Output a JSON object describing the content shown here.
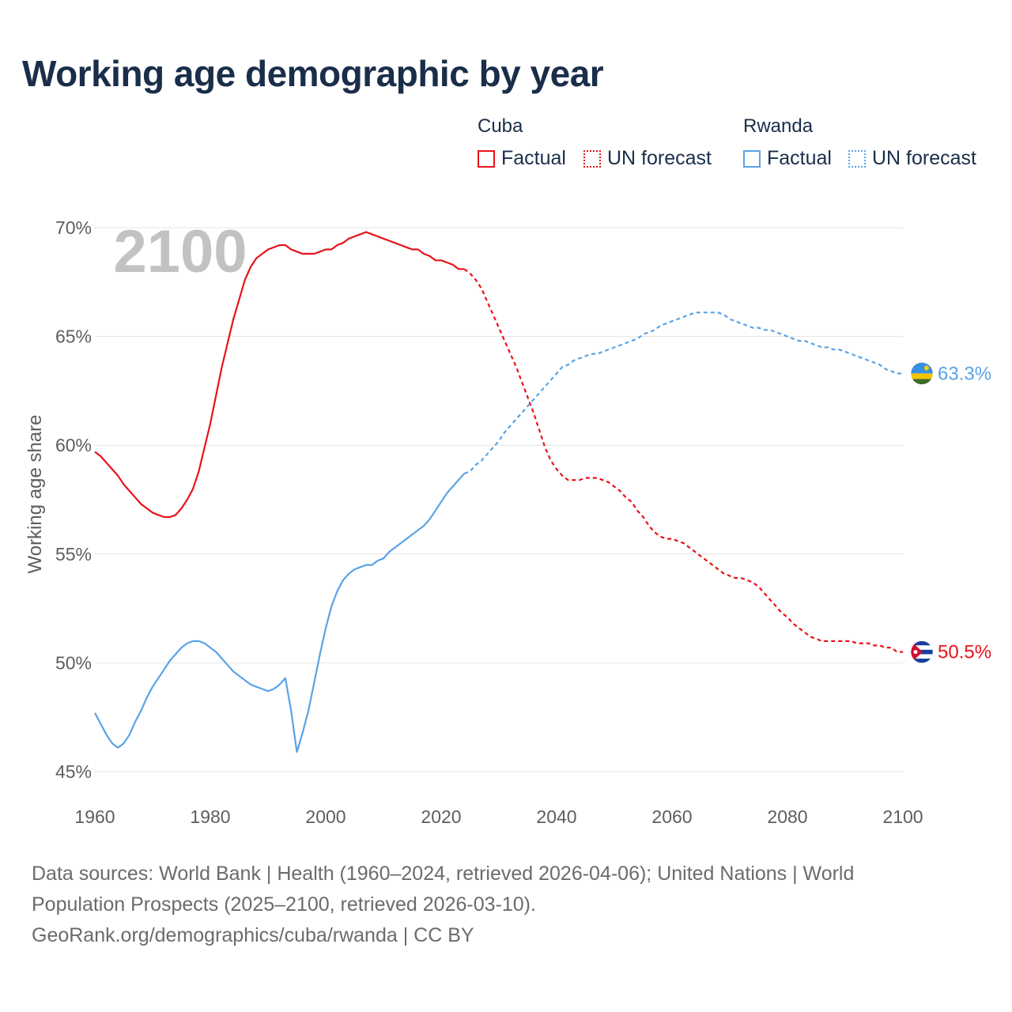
{
  "title": "Working age demographic by year",
  "legend": {
    "cuba": {
      "label": "Cuba",
      "factual": "Factual",
      "forecast": "UN forecast",
      "color": "#e8121b"
    },
    "rwanda": {
      "label": "Rwanda",
      "factual": "Factual",
      "forecast": "UN forecast",
      "color": "#5aa3e6"
    }
  },
  "footer": {
    "line1": "Data sources: World Bank | Health (1960–2024, retrieved 2026-04-06); United Nations | World",
    "line2": "Population Prospects (2025–2100, retrieved 2026-03-10).",
    "line3": "GeoRank.org/demographics/cuba/rwanda | CC BY"
  },
  "chart_data": {
    "type": "line",
    "year_watermark": "2100",
    "ylabel": "Working age share",
    "xlim": [
      1960,
      2100
    ],
    "ylim": [
      45,
      70
    ],
    "x_ticks": [
      "1960",
      "1980",
      "2000",
      "2020",
      "2040",
      "2060",
      "2080",
      "2100"
    ],
    "y_ticks": [
      "45%",
      "50%",
      "55%",
      "60%",
      "65%",
      "70%"
    ],
    "grid": true,
    "factual_end_year": 2024,
    "series": [
      {
        "name": "Cuba",
        "color": "#e8121b",
        "end_label": "50.5%",
        "flag": "cuba-flag",
        "points": [
          [
            1960,
            59.7
          ],
          [
            1961,
            59.5
          ],
          [
            1962,
            59.2
          ],
          [
            1963,
            58.9
          ],
          [
            1964,
            58.6
          ],
          [
            1965,
            58.2
          ],
          [
            1966,
            57.9
          ],
          [
            1967,
            57.6
          ],
          [
            1968,
            57.3
          ],
          [
            1969,
            57.1
          ],
          [
            1970,
            56.9
          ],
          [
            1971,
            56.8
          ],
          [
            1972,
            56.7
          ],
          [
            1973,
            56.7
          ],
          [
            1974,
            56.8
          ],
          [
            1975,
            57.1
          ],
          [
            1976,
            57.5
          ],
          [
            1977,
            58.0
          ],
          [
            1978,
            58.8
          ],
          [
            1979,
            59.9
          ],
          [
            1980,
            61.0
          ],
          [
            1981,
            62.3
          ],
          [
            1982,
            63.6
          ],
          [
            1983,
            64.7
          ],
          [
            1984,
            65.8
          ],
          [
            1985,
            66.7
          ],
          [
            1986,
            67.6
          ],
          [
            1987,
            68.2
          ],
          [
            1988,
            68.6
          ],
          [
            1989,
            68.8
          ],
          [
            1990,
            69.0
          ],
          [
            1991,
            69.1
          ],
          [
            1992,
            69.2
          ],
          [
            1993,
            69.2
          ],
          [
            1994,
            69.0
          ],
          [
            1995,
            68.9
          ],
          [
            1996,
            68.8
          ],
          [
            1997,
            68.8
          ],
          [
            1998,
            68.8
          ],
          [
            1999,
            68.9
          ],
          [
            2000,
            69.0
          ],
          [
            2001,
            69.0
          ],
          [
            2002,
            69.2
          ],
          [
            2003,
            69.3
          ],
          [
            2004,
            69.5
          ],
          [
            2005,
            69.6
          ],
          [
            2006,
            69.7
          ],
          [
            2007,
            69.8
          ],
          [
            2008,
            69.7
          ],
          [
            2009,
            69.6
          ],
          [
            2010,
            69.5
          ],
          [
            2011,
            69.4
          ],
          [
            2012,
            69.3
          ],
          [
            2013,
            69.2
          ],
          [
            2014,
            69.1
          ],
          [
            2015,
            69.0
          ],
          [
            2016,
            69.0
          ],
          [
            2017,
            68.8
          ],
          [
            2018,
            68.7
          ],
          [
            2019,
            68.5
          ],
          [
            2020,
            68.5
          ],
          [
            2021,
            68.4
          ],
          [
            2022,
            68.3
          ],
          [
            2023,
            68.1
          ],
          [
            2024,
            68.1
          ],
          [
            2025,
            67.9
          ],
          [
            2026,
            67.6
          ],
          [
            2027,
            67.2
          ],
          [
            2028,
            66.6
          ],
          [
            2029,
            66.0
          ],
          [
            2030,
            65.4
          ],
          [
            2031,
            64.8
          ],
          [
            2032,
            64.2
          ],
          [
            2033,
            63.6
          ],
          [
            2034,
            62.9
          ],
          [
            2035,
            62.2
          ],
          [
            2036,
            61.5
          ],
          [
            2037,
            60.7
          ],
          [
            2038,
            59.9
          ],
          [
            2039,
            59.3
          ],
          [
            2040,
            58.9
          ],
          [
            2041,
            58.6
          ],
          [
            2042,
            58.4
          ],
          [
            2043,
            58.4
          ],
          [
            2044,
            58.4
          ],
          [
            2045,
            58.5
          ],
          [
            2046,
            58.5
          ],
          [
            2047,
            58.5
          ],
          [
            2048,
            58.4
          ],
          [
            2049,
            58.3
          ],
          [
            2050,
            58.1
          ],
          [
            2051,
            57.9
          ],
          [
            2052,
            57.6
          ],
          [
            2053,
            57.4
          ],
          [
            2054,
            57.0
          ],
          [
            2055,
            56.7
          ],
          [
            2056,
            56.3
          ],
          [
            2057,
            56.0
          ],
          [
            2058,
            55.8
          ],
          [
            2059,
            55.7
          ],
          [
            2060,
            55.7
          ],
          [
            2061,
            55.6
          ],
          [
            2062,
            55.5
          ],
          [
            2063,
            55.3
          ],
          [
            2064,
            55.1
          ],
          [
            2065,
            54.9
          ],
          [
            2066,
            54.7
          ],
          [
            2067,
            54.5
          ],
          [
            2068,
            54.3
          ],
          [
            2069,
            54.1
          ],
          [
            2070,
            54.0
          ],
          [
            2071,
            53.9
          ],
          [
            2072,
            53.9
          ],
          [
            2073,
            53.8
          ],
          [
            2074,
            53.7
          ],
          [
            2075,
            53.5
          ],
          [
            2076,
            53.2
          ],
          [
            2077,
            52.9
          ],
          [
            2078,
            52.6
          ],
          [
            2079,
            52.3
          ],
          [
            2080,
            52.1
          ],
          [
            2081,
            51.8
          ],
          [
            2082,
            51.6
          ],
          [
            2083,
            51.4
          ],
          [
            2084,
            51.2
          ],
          [
            2085,
            51.1
          ],
          [
            2086,
            51.0
          ],
          [
            2087,
            51.0
          ],
          [
            2088,
            51.0
          ],
          [
            2089,
            51.0
          ],
          [
            2090,
            51.0
          ],
          [
            2091,
            51.0
          ],
          [
            2092,
            50.9
          ],
          [
            2093,
            50.9
          ],
          [
            2094,
            50.9
          ],
          [
            2095,
            50.8
          ],
          [
            2096,
            50.8
          ],
          [
            2097,
            50.7
          ],
          [
            2098,
            50.7
          ],
          [
            2099,
            50.5
          ],
          [
            2100,
            50.5
          ]
        ]
      },
      {
        "name": "Rwanda",
        "color": "#5aa3e6",
        "end_label": "63.3%",
        "flag": "rwanda-flag",
        "points": [
          [
            1960,
            47.7
          ],
          [
            1961,
            47.2
          ],
          [
            1962,
            46.7
          ],
          [
            1963,
            46.3
          ],
          [
            1964,
            46.1
          ],
          [
            1965,
            46.3
          ],
          [
            1966,
            46.7
          ],
          [
            1967,
            47.3
          ],
          [
            1968,
            47.8
          ],
          [
            1969,
            48.4
          ],
          [
            1970,
            48.9
          ],
          [
            1971,
            49.3
          ],
          [
            1972,
            49.7
          ],
          [
            1973,
            50.1
          ],
          [
            1974,
            50.4
          ],
          [
            1975,
            50.7
          ],
          [
            1976,
            50.9
          ],
          [
            1977,
            51.0
          ],
          [
            1978,
            51.0
          ],
          [
            1979,
            50.9
          ],
          [
            1980,
            50.7
          ],
          [
            1981,
            50.5
          ],
          [
            1982,
            50.2
          ],
          [
            1983,
            49.9
          ],
          [
            1984,
            49.6
          ],
          [
            1985,
            49.4
          ],
          [
            1986,
            49.2
          ],
          [
            1987,
            49.0
          ],
          [
            1988,
            48.9
          ],
          [
            1989,
            48.8
          ],
          [
            1990,
            48.7
          ],
          [
            1991,
            48.8
          ],
          [
            1992,
            49.0
          ],
          [
            1993,
            49.3
          ],
          [
            1994,
            47.8
          ],
          [
            1995,
            45.9
          ],
          [
            1996,
            46.8
          ],
          [
            1997,
            47.8
          ],
          [
            1998,
            49.1
          ],
          [
            1999,
            50.4
          ],
          [
            2000,
            51.6
          ],
          [
            2001,
            52.6
          ],
          [
            2002,
            53.3
          ],
          [
            2003,
            53.8
          ],
          [
            2004,
            54.1
          ],
          [
            2005,
            54.3
          ],
          [
            2006,
            54.4
          ],
          [
            2007,
            54.5
          ],
          [
            2008,
            54.5
          ],
          [
            2009,
            54.7
          ],
          [
            2010,
            54.8
          ],
          [
            2011,
            55.1
          ],
          [
            2012,
            55.3
          ],
          [
            2013,
            55.5
          ],
          [
            2014,
            55.7
          ],
          [
            2015,
            55.9
          ],
          [
            2016,
            56.1
          ],
          [
            2017,
            56.3
          ],
          [
            2018,
            56.6
          ],
          [
            2019,
            57.0
          ],
          [
            2020,
            57.4
          ],
          [
            2021,
            57.8
          ],
          [
            2022,
            58.1
          ],
          [
            2023,
            58.4
          ],
          [
            2024,
            58.7
          ],
          [
            2025,
            58.8
          ],
          [
            2026,
            59.1
          ],
          [
            2027,
            59.3
          ],
          [
            2028,
            59.6
          ],
          [
            2029,
            59.9
          ],
          [
            2030,
            60.2
          ],
          [
            2031,
            60.6
          ],
          [
            2032,
            60.9
          ],
          [
            2033,
            61.2
          ],
          [
            2034,
            61.5
          ],
          [
            2035,
            61.8
          ],
          [
            2036,
            62.1
          ],
          [
            2037,
            62.4
          ],
          [
            2038,
            62.7
          ],
          [
            2039,
            63.0
          ],
          [
            2040,
            63.3
          ],
          [
            2041,
            63.6
          ],
          [
            2042,
            63.7
          ],
          [
            2043,
            63.9
          ],
          [
            2044,
            64.0
          ],
          [
            2045,
            64.1
          ],
          [
            2046,
            64.2
          ],
          [
            2047,
            64.2
          ],
          [
            2048,
            64.3
          ],
          [
            2049,
            64.4
          ],
          [
            2050,
            64.5
          ],
          [
            2051,
            64.6
          ],
          [
            2052,
            64.7
          ],
          [
            2053,
            64.8
          ],
          [
            2054,
            64.9
          ],
          [
            2055,
            65.1
          ],
          [
            2056,
            65.2
          ],
          [
            2057,
            65.3
          ],
          [
            2058,
            65.5
          ],
          [
            2059,
            65.6
          ],
          [
            2060,
            65.7
          ],
          [
            2061,
            65.8
          ],
          [
            2062,
            65.9
          ],
          [
            2063,
            66.0
          ],
          [
            2064,
            66.1
          ],
          [
            2065,
            66.1
          ],
          [
            2066,
            66.1
          ],
          [
            2067,
            66.1
          ],
          [
            2068,
            66.1
          ],
          [
            2069,
            66.0
          ],
          [
            2070,
            65.8
          ],
          [
            2071,
            65.7
          ],
          [
            2072,
            65.6
          ],
          [
            2073,
            65.5
          ],
          [
            2074,
            65.4
          ],
          [
            2075,
            65.4
          ],
          [
            2076,
            65.3
          ],
          [
            2077,
            65.3
          ],
          [
            2078,
            65.2
          ],
          [
            2079,
            65.1
          ],
          [
            2080,
            65.0
          ],
          [
            2081,
            64.9
          ],
          [
            2082,
            64.8
          ],
          [
            2083,
            64.8
          ],
          [
            2084,
            64.7
          ],
          [
            2085,
            64.6
          ],
          [
            2086,
            64.5
          ],
          [
            2087,
            64.5
          ],
          [
            2088,
            64.4
          ],
          [
            2089,
            64.4
          ],
          [
            2090,
            64.3
          ],
          [
            2091,
            64.2
          ],
          [
            2092,
            64.1
          ],
          [
            2093,
            64.0
          ],
          [
            2094,
            63.9
          ],
          [
            2095,
            63.8
          ],
          [
            2096,
            63.7
          ],
          [
            2097,
            63.5
          ],
          [
            2098,
            63.4
          ],
          [
            2099,
            63.3
          ],
          [
            2100,
            63.3
          ]
        ]
      }
    ]
  }
}
